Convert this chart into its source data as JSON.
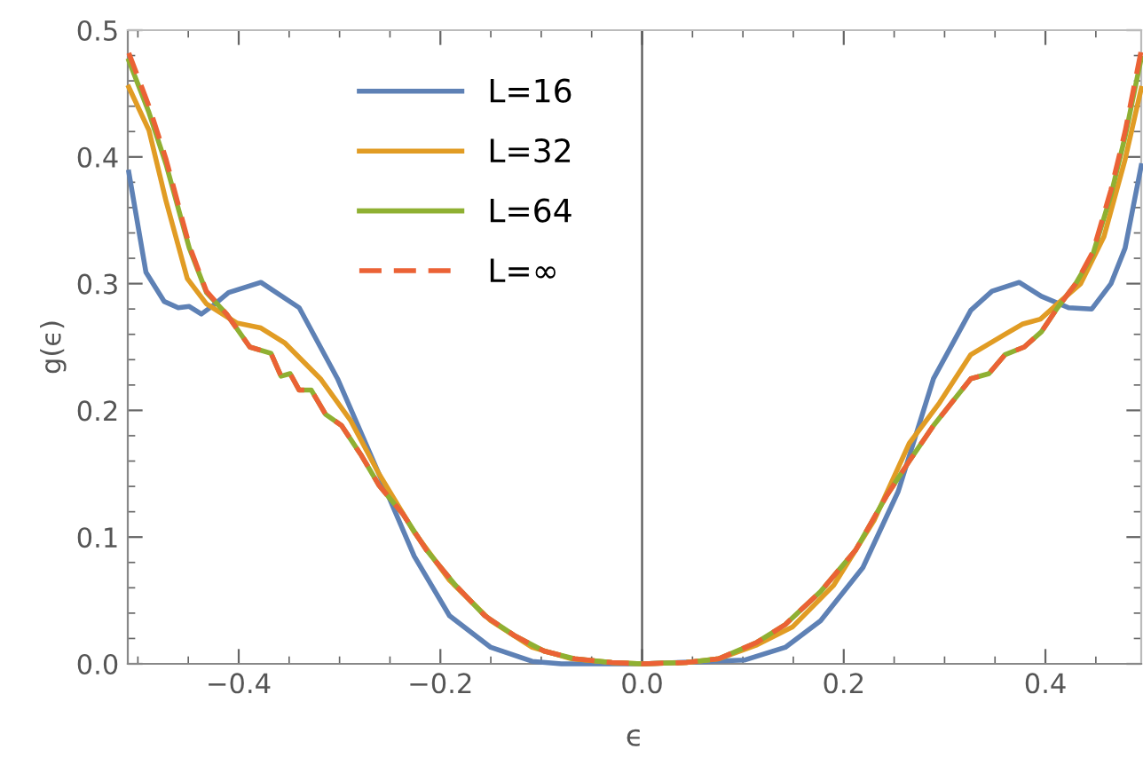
{
  "chart_data": {
    "type": "line",
    "xlabel": "ϵ",
    "ylabel": "g(ϵ)",
    "xlim": [
      -0.51,
      0.495
    ],
    "ylim": [
      0,
      0.5
    ],
    "xticks": [
      {
        "value": -0.4,
        "label": "−0.4"
      },
      {
        "value": -0.2,
        "label": "−0.2"
      },
      {
        "value": 0,
        "label": "0.0"
      },
      {
        "value": 0.2,
        "label": "0.2"
      },
      {
        "value": 0.4,
        "label": "0.4"
      }
    ],
    "yticks": [
      {
        "value": 0,
        "label": "0.0"
      },
      {
        "value": 0.1,
        "label": "0.1"
      },
      {
        "value": 0.2,
        "label": "0.2"
      },
      {
        "value": 0.3,
        "label": "0.3"
      },
      {
        "value": 0.4,
        "label": "0.4"
      },
      {
        "value": 0.5,
        "label": "0.5"
      }
    ],
    "grid": false,
    "legend": "top left",
    "marker": "none",
    "ref_lines": [
      {
        "axis": "x",
        "value": 0,
        "color": "#555555"
      }
    ],
    "series": [
      {
        "name": "L=16",
        "color": "#5e81b5",
        "line_style": "solid",
        "x": [
          -0.509,
          -0.492,
          -0.474,
          -0.46,
          -0.449,
          -0.437,
          -0.425,
          -0.41,
          -0.378,
          -0.34,
          -0.302,
          -0.261,
          -0.226,
          -0.191,
          -0.15,
          -0.109,
          -0.08,
          0.0,
          0.102,
          0.142,
          0.177,
          0.219,
          0.254,
          0.289,
          0.326,
          0.347,
          0.374,
          0.396,
          0.423,
          0.446,
          0.465,
          0.479,
          0.495
        ],
        "values": [
          0.388,
          0.309,
          0.286,
          0.281,
          0.282,
          0.276,
          0.283,
          0.293,
          0.301,
          0.281,
          0.225,
          0.15,
          0.085,
          0.038,
          0.013,
          0.002,
          0.0,
          0.0,
          0.003,
          0.013,
          0.034,
          0.076,
          0.136,
          0.225,
          0.279,
          0.294,
          0.301,
          0.29,
          0.281,
          0.28,
          0.3,
          0.328,
          0.393
        ]
      },
      {
        "name": "L=32",
        "color": "#e19c24",
        "line_style": "solid",
        "x": [
          -0.509,
          -0.489,
          -0.472,
          -0.451,
          -0.432,
          -0.402,
          -0.378,
          -0.354,
          -0.319,
          -0.289,
          -0.261,
          -0.226,
          -0.191,
          -0.15,
          -0.109,
          -0.07,
          -0.03,
          0.0,
          0.044,
          0.076,
          0.114,
          0.149,
          0.19,
          0.23,
          0.265,
          0.295,
          0.326,
          0.36,
          0.377,
          0.395,
          0.412,
          0.435,
          0.458,
          0.479,
          0.495
        ],
        "values": [
          0.455,
          0.421,
          0.365,
          0.304,
          0.284,
          0.269,
          0.265,
          0.253,
          0.225,
          0.192,
          0.15,
          0.104,
          0.066,
          0.034,
          0.013,
          0.004,
          0.001,
          0.0,
          0.001,
          0.004,
          0.015,
          0.029,
          0.062,
          0.113,
          0.174,
          0.206,
          0.244,
          0.26,
          0.268,
          0.272,
          0.284,
          0.3,
          0.337,
          0.398,
          0.454
        ]
      },
      {
        "name": "L=64",
        "color": "#8fb032",
        "line_style": "solid",
        "x": [
          -0.509,
          -0.489,
          -0.472,
          -0.449,
          -0.432,
          -0.412,
          -0.389,
          -0.368,
          -0.358,
          -0.349,
          -0.34,
          -0.328,
          -0.314,
          -0.298,
          -0.278,
          -0.261,
          -0.237,
          -0.214,
          -0.185,
          -0.156,
          -0.126,
          -0.097,
          -0.067,
          -0.03,
          0.0,
          0.044,
          0.076,
          0.114,
          0.142,
          0.177,
          0.212,
          0.242,
          0.265,
          0.289,
          0.307,
          0.326,
          0.344,
          0.36,
          0.379,
          0.396,
          0.412,
          0.43,
          0.447,
          0.465,
          0.479,
          0.495
        ],
        "values": [
          0.476,
          0.435,
          0.394,
          0.328,
          0.293,
          0.276,
          0.25,
          0.245,
          0.227,
          0.229,
          0.216,
          0.216,
          0.197,
          0.188,
          0.164,
          0.141,
          0.118,
          0.09,
          0.062,
          0.038,
          0.022,
          0.01,
          0.004,
          0.001,
          0.0,
          0.001,
          0.004,
          0.017,
          0.031,
          0.057,
          0.09,
          0.132,
          0.16,
          0.188,
          0.206,
          0.225,
          0.229,
          0.244,
          0.25,
          0.262,
          0.281,
          0.3,
          0.323,
          0.37,
          0.416,
          0.478
        ]
      },
      {
        "name": "L=∞",
        "color": "#eb6235",
        "line_style": "dashed",
        "x": [
          -0.509,
          -0.489,
          -0.472,
          -0.449,
          -0.432,
          -0.412,
          -0.389,
          -0.368,
          -0.358,
          -0.349,
          -0.34,
          -0.328,
          -0.314,
          -0.298,
          -0.278,
          -0.261,
          -0.237,
          -0.214,
          -0.185,
          -0.156,
          -0.126,
          -0.097,
          -0.067,
          -0.03,
          0.0,
          0.044,
          0.076,
          0.114,
          0.142,
          0.177,
          0.212,
          0.242,
          0.265,
          0.289,
          0.307,
          0.326,
          0.344,
          0.36,
          0.379,
          0.396,
          0.412,
          0.43,
          0.447,
          0.465,
          0.479,
          0.495
        ],
        "values": [
          0.482,
          0.44,
          0.398,
          0.33,
          0.294,
          0.276,
          0.25,
          0.245,
          0.227,
          0.229,
          0.216,
          0.216,
          0.197,
          0.188,
          0.164,
          0.141,
          0.118,
          0.09,
          0.062,
          0.038,
          0.022,
          0.01,
          0.004,
          0.001,
          0.0,
          0.001,
          0.004,
          0.017,
          0.031,
          0.057,
          0.09,
          0.132,
          0.16,
          0.188,
          0.206,
          0.225,
          0.229,
          0.244,
          0.25,
          0.262,
          0.281,
          0.3,
          0.325,
          0.374,
          0.42,
          0.484
        ]
      }
    ]
  }
}
